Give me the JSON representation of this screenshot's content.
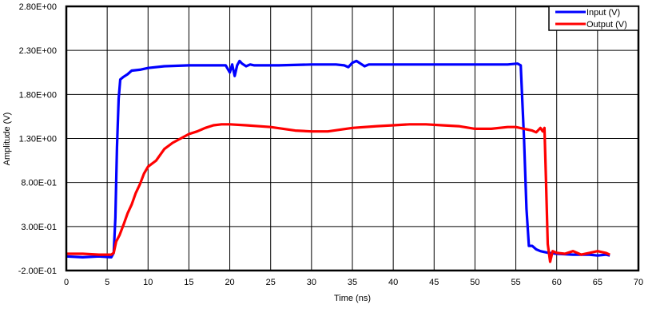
{
  "chart_data": {
    "type": "line",
    "title": "",
    "xlabel": "Time (ns)",
    "ylabel": "Amplitude (V)",
    "xlim": [
      0,
      70
    ],
    "ylim": [
      -0.2,
      2.8
    ],
    "grid": true,
    "legend_position": "top-right",
    "x_ticks": [
      "0",
      "5",
      "10",
      "15",
      "20",
      "25",
      "30",
      "35",
      "40",
      "45",
      "50",
      "55",
      "60",
      "65",
      "70"
    ],
    "y_ticks": [
      "2.80E+00",
      "2.30E+00",
      "1.80E+00",
      "1.30E+00",
      "8.00E-01",
      "3.00E-01",
      "-2.00E-01"
    ],
    "series": [
      {
        "name": "Input (V)",
        "color": "#0000ff",
        "x": [
          0,
          2,
          4,
          5.5,
          5.8,
          6.0,
          6.2,
          6.4,
          6.6,
          7,
          7.5,
          8,
          9,
          10,
          12,
          15,
          18,
          19.5,
          20,
          20.3,
          20.6,
          20.9,
          21.2,
          21.5,
          22,
          22.5,
          23,
          24,
          26,
          30,
          33,
          34,
          34.5,
          35,
          35.5,
          36,
          36.5,
          37,
          38,
          40,
          45,
          50,
          54,
          55.2,
          55.6,
          56.0,
          56.3,
          56.6,
          57,
          57.5,
          58,
          59,
          60,
          62,
          64,
          65,
          66,
          66.5
        ],
        "y": [
          -0.04,
          -0.05,
          -0.04,
          -0.05,
          0.0,
          0.4,
          1.2,
          1.75,
          1.97,
          2.0,
          2.03,
          2.07,
          2.08,
          2.1,
          2.12,
          2.13,
          2.13,
          2.13,
          2.05,
          2.14,
          2.01,
          2.13,
          2.18,
          2.15,
          2.12,
          2.14,
          2.13,
          2.13,
          2.13,
          2.14,
          2.14,
          2.13,
          2.11,
          2.16,
          2.18,
          2.15,
          2.12,
          2.14,
          2.14,
          2.14,
          2.14,
          2.14,
          2.14,
          2.15,
          2.13,
          1.3,
          0.5,
          0.08,
          0.08,
          0.04,
          0.02,
          0.0,
          -0.01,
          -0.02,
          -0.02,
          -0.03,
          -0.02,
          -0.03
        ]
      },
      {
        "name": "Output (V)",
        "color": "#ff0000",
        "x": [
          0,
          2,
          4,
          5.5,
          5.8,
          6.1,
          6.5,
          7,
          7.5,
          8,
          8.5,
          9,
          9.5,
          10,
          11,
          12,
          13,
          14,
          15,
          16,
          17,
          18,
          19,
          20,
          22,
          25,
          28,
          30,
          32,
          35,
          38,
          40,
          42,
          44,
          46,
          48,
          50,
          52,
          54,
          55,
          56,
          56.5,
          57,
          57.5,
          58,
          58.3,
          58.5,
          58.7,
          58.9,
          59.2,
          59.5,
          60,
          61,
          62,
          63,
          64,
          65,
          66,
          66.5
        ],
        "y": [
          -0.01,
          -0.01,
          -0.02,
          -0.02,
          0.0,
          0.13,
          0.2,
          0.32,
          0.45,
          0.55,
          0.68,
          0.78,
          0.9,
          0.98,
          1.05,
          1.18,
          1.25,
          1.3,
          1.35,
          1.38,
          1.42,
          1.45,
          1.46,
          1.46,
          1.45,
          1.43,
          1.39,
          1.38,
          1.38,
          1.42,
          1.44,
          1.45,
          1.46,
          1.46,
          1.45,
          1.44,
          1.41,
          1.41,
          1.43,
          1.43,
          1.41,
          1.4,
          1.39,
          1.37,
          1.42,
          1.38,
          1.42,
          0.8,
          0.1,
          -0.1,
          0.02,
          0.0,
          -0.01,
          0.02,
          -0.02,
          0.0,
          0.02,
          0.0,
          -0.02
        ]
      }
    ]
  },
  "legend": {
    "items": [
      {
        "label": "Input (V)",
        "color": "#0000ff"
      },
      {
        "label": "Output (V)",
        "color": "#ff0000"
      }
    ]
  }
}
